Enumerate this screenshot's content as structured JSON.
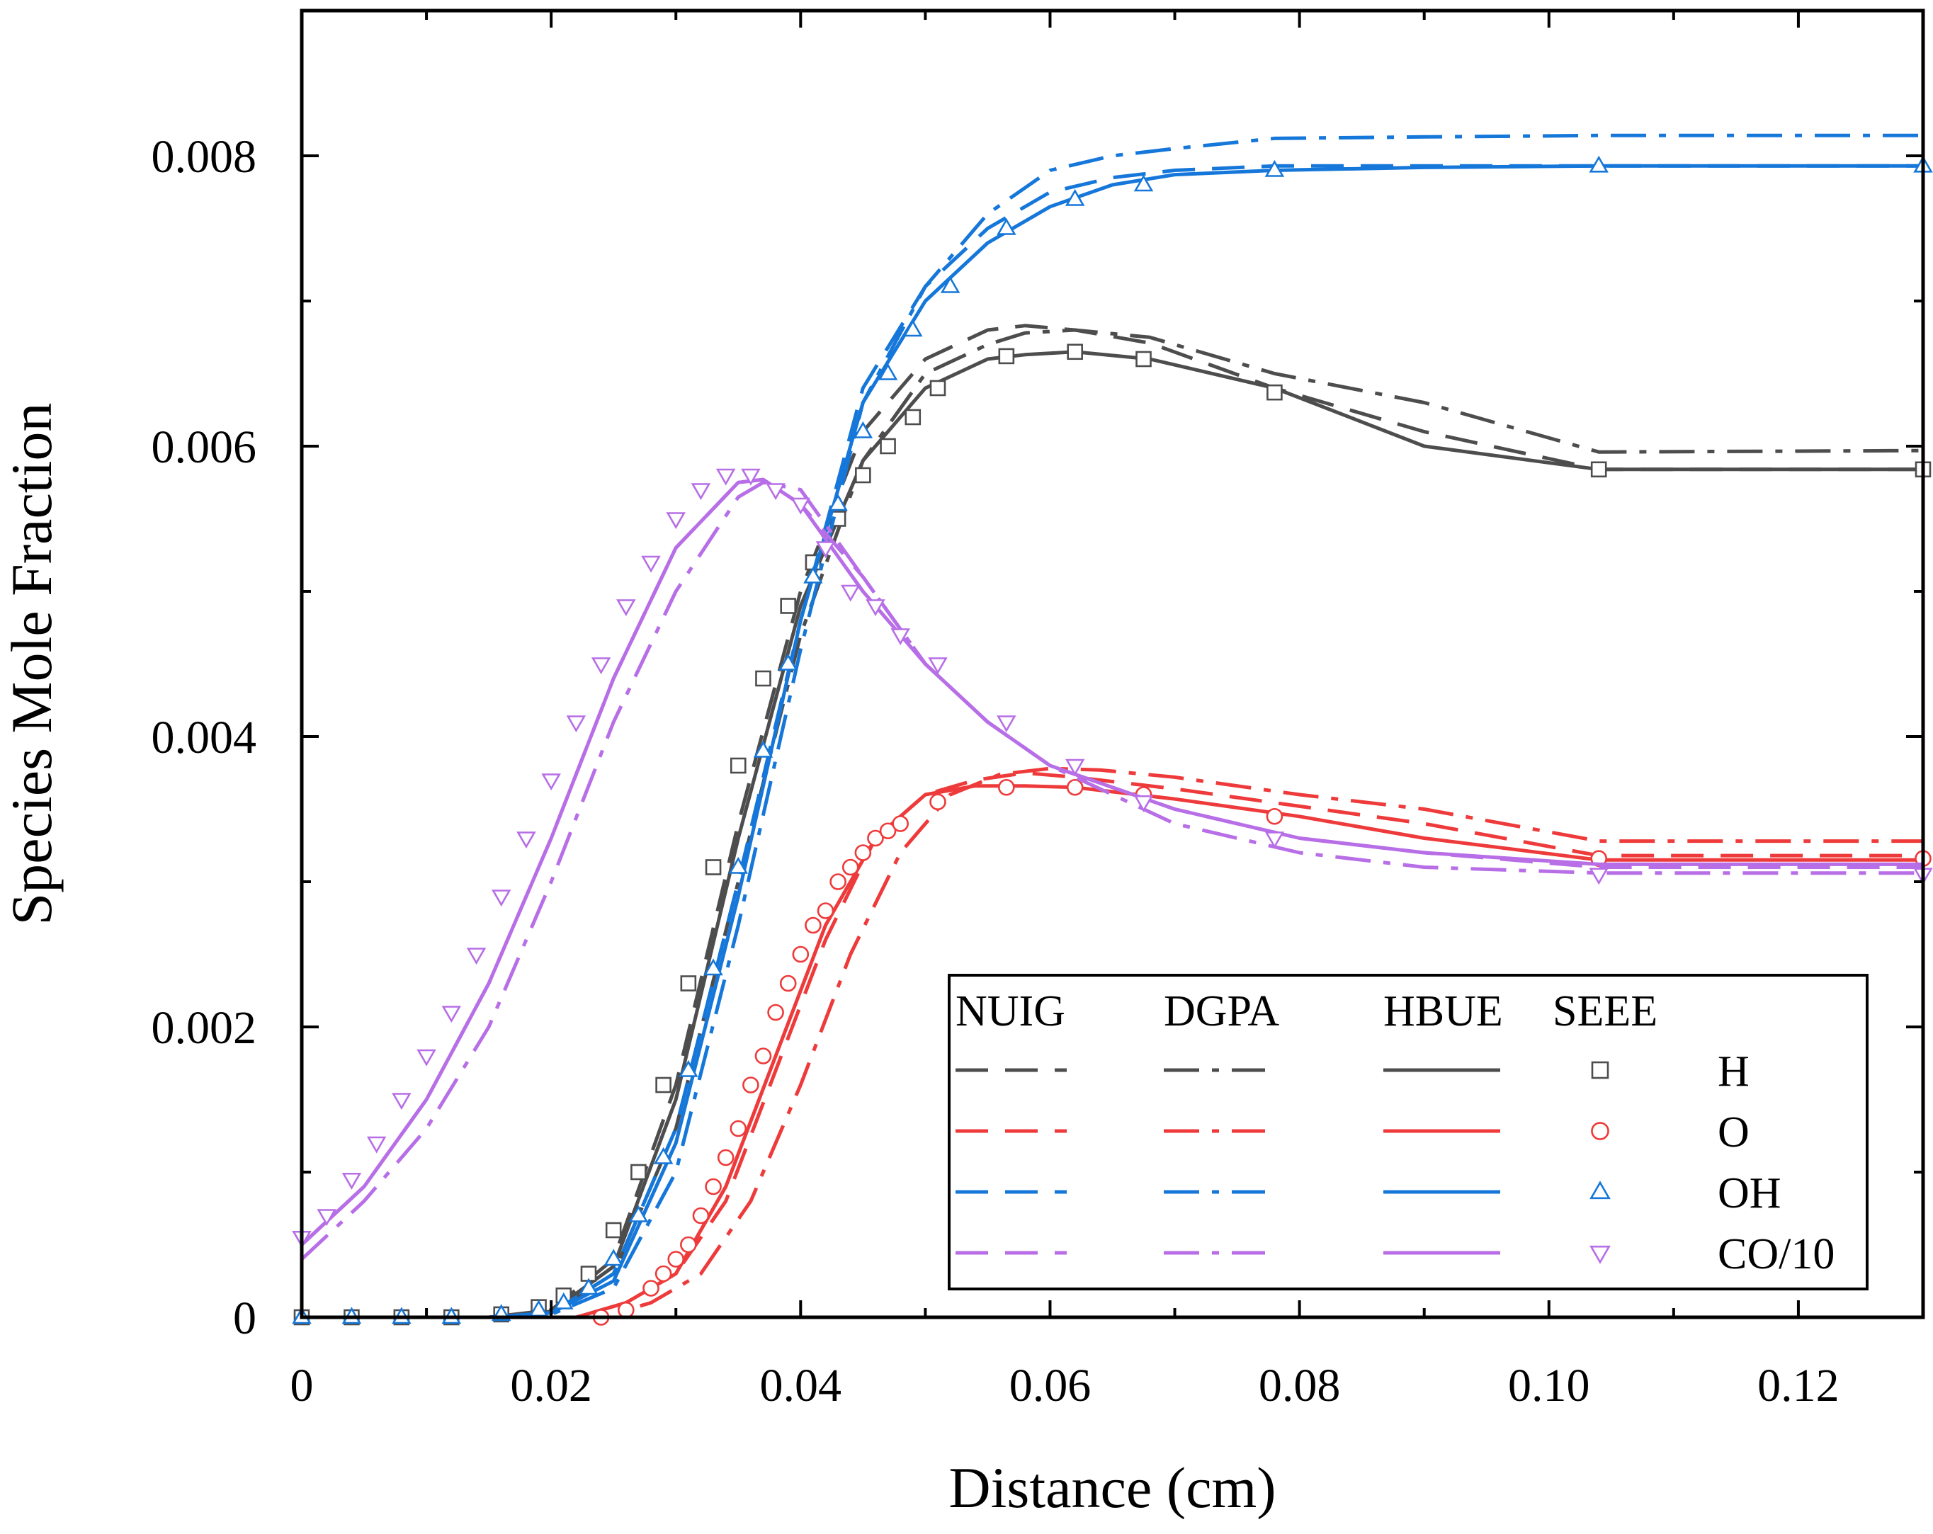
{
  "chart_data": {
    "type": "line",
    "xlabel": "Distance (cm)",
    "ylabel": "Species Mole Fraction",
    "xlim": [
      0,
      0.13
    ],
    "ylim": [
      0,
      0.009
    ],
    "xticks": [
      {
        "v": 0,
        "label": "0"
      },
      {
        "v": 0.02,
        "label": "0.02"
      },
      {
        "v": 0.04,
        "label": "0.04"
      },
      {
        "v": 0.06,
        "label": "0.06"
      },
      {
        "v": 0.08,
        "label": "0.08"
      },
      {
        "v": 0.1,
        "label": "0.10"
      },
      {
        "v": 0.12,
        "label": "0.12"
      }
    ],
    "yticks": [
      {
        "v": 0,
        "label": "0"
      },
      {
        "v": 0.002,
        "label": "0.002"
      },
      {
        "v": 0.004,
        "label": "0.004"
      },
      {
        "v": 0.006,
        "label": "0.006"
      },
      {
        "v": 0.008,
        "label": "0.008"
      }
    ],
    "legend": {
      "placement": "bottom-right",
      "models": [
        {
          "name": "NUIG",
          "style": "dash"
        },
        {
          "name": "DGPA",
          "style": "dashdot"
        },
        {
          "name": "HBUE",
          "style": "solid"
        },
        {
          "name": "SEEE",
          "style": "marker"
        }
      ]
    },
    "species": [
      {
        "name": "H",
        "color": "#4d4d4d",
        "marker": "square",
        "series": {
          "NUIG": {
            "x": [
              0,
              0.015,
              0.02,
              0.025,
              0.03,
              0.035,
              0.04,
              0.045,
              0.05,
              0.055,
              0.058,
              0.062,
              0.068,
              0.078,
              0.09,
              0.104,
              0.13
            ],
            "y": [
              0,
              0,
              5e-05,
              0.0004,
              0.0016,
              0.0034,
              0.005,
              0.0061,
              0.0066,
              0.0068,
              0.00683,
              0.0068,
              0.00671,
              0.0064,
              0.0061,
              0.00584,
              0.00584
            ]
          },
          "DGPA": {
            "x": [
              0,
              0.015,
              0.02,
              0.025,
              0.03,
              0.035,
              0.04,
              0.045,
              0.05,
              0.055,
              0.058,
              0.062,
              0.068,
              0.078,
              0.09,
              0.104,
              0.13
            ],
            "y": [
              0,
              0,
              3e-05,
              0.0003,
              0.0013,
              0.003,
              0.0047,
              0.0059,
              0.0065,
              0.0067,
              0.00678,
              0.0068,
              0.00675,
              0.0065,
              0.0063,
              0.00596,
              0.00597
            ]
          },
          "HBUE": {
            "x": [
              0,
              0.015,
              0.02,
              0.025,
              0.03,
              0.035,
              0.04,
              0.045,
              0.05,
              0.055,
              0.058,
              0.062,
              0.068,
              0.078,
              0.09,
              0.104,
              0.13
            ],
            "y": [
              0,
              0,
              4e-05,
              0.00035,
              0.0015,
              0.0033,
              0.0049,
              0.0059,
              0.0064,
              0.0066,
              0.00663,
              0.00665,
              0.0066,
              0.0064,
              0.006,
              0.00584,
              0.00584
            ]
          },
          "SEEE": {
            "x": [
              0,
              0.004,
              0.008,
              0.012,
              0.016,
              0.019,
              0.021,
              0.023,
              0.025,
              0.027,
              0.029,
              0.031,
              0.033,
              0.035,
              0.037,
              0.039,
              0.041,
              0.043,
              0.045,
              0.047,
              0.049,
              0.051,
              0.0565,
              0.062,
              0.0675,
              0.078,
              0.104,
              0.13
            ],
            "y": [
              0,
              0,
              0,
              0,
              2e-05,
              7e-05,
              0.00015,
              0.0003,
              0.0006,
              0.001,
              0.0016,
              0.0023,
              0.0031,
              0.0038,
              0.0044,
              0.0049,
              0.0052,
              0.0055,
              0.0058,
              0.006,
              0.0062,
              0.0064,
              0.00662,
              0.00665,
              0.0066,
              0.00637,
              0.00584,
              0.00584
            ]
          }
        }
      },
      {
        "name": "O",
        "color": "#ee3a3a",
        "marker": "circle",
        "series": {
          "NUIG": {
            "x": [
              0,
              0.022,
              0.026,
              0.03,
              0.034,
              0.038,
              0.042,
              0.046,
              0.05,
              0.054,
              0.058,
              0.062,
              0.07,
              0.08,
              0.09,
              0.104,
              0.13
            ],
            "y": [
              0,
              0,
              0.0001,
              0.0003,
              0.0008,
              0.0017,
              0.0026,
              0.0033,
              0.0036,
              0.0037,
              0.00375,
              0.00372,
              0.00364,
              0.00352,
              0.0034,
              0.00318,
              0.00318
            ]
          },
          "DGPA": {
            "x": [
              0,
              0.024,
              0.028,
              0.032,
              0.036,
              0.04,
              0.044,
              0.048,
              0.052,
              0.056,
              0.06,
              0.064,
              0.07,
              0.08,
              0.09,
              0.104,
              0.13
            ],
            "y": [
              0,
              0,
              0.0001,
              0.0003,
              0.0008,
              0.0016,
              0.0025,
              0.0032,
              0.0036,
              0.00374,
              0.00378,
              0.00377,
              0.00372,
              0.0036,
              0.0035,
              0.00328,
              0.00328
            ]
          },
          "HBUE": {
            "x": [
              0,
              0.022,
              0.026,
              0.03,
              0.034,
              0.038,
              0.042,
              0.046,
              0.05,
              0.054,
              0.058,
              0.062,
              0.07,
              0.08,
              0.09,
              0.104,
              0.13
            ],
            "y": [
              0,
              0,
              0.0001,
              0.0003,
              0.0009,
              0.0018,
              0.0027,
              0.0033,
              0.0036,
              0.00366,
              0.00366,
              0.00365,
              0.00357,
              0.00345,
              0.0033,
              0.00315,
              0.00315
            ]
          },
          "SEEE": {
            "x": [
              0.024,
              0.026,
              0.028,
              0.029,
              0.03,
              0.031,
              0.032,
              0.033,
              0.034,
              0.035,
              0.036,
              0.037,
              0.038,
              0.039,
              0.04,
              0.041,
              0.042,
              0.043,
              0.044,
              0.045,
              0.046,
              0.047,
              0.048,
              0.051,
              0.0565,
              0.062,
              0.0675,
              0.078,
              0.104,
              0.13
            ],
            "y": [
              0,
              5e-05,
              0.0002,
              0.0003,
              0.0004,
              0.0005,
              0.0007,
              0.0009,
              0.0011,
              0.0013,
              0.0016,
              0.0018,
              0.0021,
              0.0023,
              0.0025,
              0.0027,
              0.0028,
              0.003,
              0.0031,
              0.0032,
              0.0033,
              0.00335,
              0.0034,
              0.00355,
              0.00365,
              0.00365,
              0.0036,
              0.00345,
              0.00316,
              0.00316
            ]
          }
        }
      },
      {
        "name": "OH",
        "color": "#1577d9",
        "marker": "triangle-up",
        "series": {
          "NUIG": {
            "x": [
              0,
              0.015,
              0.02,
              0.025,
              0.03,
              0.035,
              0.04,
              0.045,
              0.05,
              0.055,
              0.06,
              0.065,
              0.07,
              0.078,
              0.09,
              0.104,
              0.13
            ],
            "y": [
              0,
              0,
              3e-05,
              0.0003,
              0.0013,
              0.003,
              0.0048,
              0.0064,
              0.0071,
              0.0075,
              0.00775,
              0.00785,
              0.0079,
              0.00793,
              0.00793,
              0.00793,
              0.00793
            ]
          },
          "DGPA": {
            "x": [
              0,
              0.015,
              0.02,
              0.025,
              0.03,
              0.035,
              0.04,
              0.045,
              0.05,
              0.055,
              0.06,
              0.065,
              0.07,
              0.078,
              0.09,
              0.104,
              0.13
            ],
            "y": [
              0,
              0,
              2e-05,
              0.0002,
              0.001,
              0.0027,
              0.0046,
              0.0063,
              0.0071,
              0.0076,
              0.0079,
              0.008,
              0.00805,
              0.00812,
              0.00813,
              0.00814,
              0.00814
            ]
          },
          "HBUE": {
            "x": [
              0,
              0.015,
              0.02,
              0.025,
              0.03,
              0.035,
              0.04,
              0.045,
              0.05,
              0.055,
              0.06,
              0.065,
              0.07,
              0.078,
              0.09,
              0.104,
              0.13
            ],
            "y": [
              0,
              0,
              3e-05,
              0.00025,
              0.0012,
              0.0029,
              0.0048,
              0.0063,
              0.007,
              0.0074,
              0.00765,
              0.0078,
              0.00787,
              0.0079,
              0.00792,
              0.00793,
              0.00793
            ]
          },
          "SEEE": {
            "x": [
              0,
              0.004,
              0.008,
              0.012,
              0.016,
              0.019,
              0.021,
              0.023,
              0.025,
              0.027,
              0.029,
              0.031,
              0.033,
              0.035,
              0.037,
              0.039,
              0.041,
              0.043,
              0.045,
              0.047,
              0.049,
              0.052,
              0.0565,
              0.062,
              0.0675,
              0.078,
              0.104,
              0.13
            ],
            "y": [
              0,
              0,
              0,
              0,
              2e-05,
              5e-05,
              0.0001,
              0.0002,
              0.0004,
              0.0007,
              0.0011,
              0.0017,
              0.0024,
              0.0031,
              0.0039,
              0.0045,
              0.0051,
              0.0056,
              0.0061,
              0.0065,
              0.0068,
              0.0071,
              0.0075,
              0.0077,
              0.0078,
              0.0079,
              0.00793,
              0.00793
            ]
          }
        }
      },
      {
        "name": "CO/10",
        "color": "#b76ee6",
        "marker": "triangle-down",
        "series": {
          "NUIG": {
            "x": [
              0,
              0.005,
              0.01,
              0.015,
              0.02,
              0.025,
              0.03,
              0.035,
              0.037,
              0.04,
              0.045,
              0.05,
              0.055,
              0.06,
              0.07,
              0.08,
              0.09,
              0.104,
              0.13
            ],
            "y": [
              0.0005,
              0.0009,
              0.0015,
              0.0023,
              0.0033,
              0.0044,
              0.0053,
              0.00575,
              0.00577,
              0.0056,
              0.0051,
              0.0045,
              0.0041,
              0.0038,
              0.0035,
              0.0033,
              0.0032,
              0.0031,
              0.0031
            ]
          },
          "DGPA": {
            "x": [
              0,
              0.005,
              0.01,
              0.015,
              0.02,
              0.025,
              0.03,
              0.035,
              0.037,
              0.04,
              0.045,
              0.05,
              0.055,
              0.06,
              0.07,
              0.08,
              0.09,
              0.104,
              0.13
            ],
            "y": [
              0.0004,
              0.0008,
              0.0013,
              0.002,
              0.003,
              0.0041,
              0.005,
              0.00565,
              0.00575,
              0.0057,
              0.0051,
              0.0045,
              0.0041,
              0.0038,
              0.0034,
              0.0032,
              0.0031,
              0.00306,
              0.00306
            ]
          },
          "HBUE": {
            "x": [
              0,
              0.005,
              0.01,
              0.015,
              0.02,
              0.025,
              0.03,
              0.035,
              0.037,
              0.04,
              0.045,
              0.05,
              0.055,
              0.06,
              0.07,
              0.08,
              0.09,
              0.104,
              0.13
            ],
            "y": [
              0.0005,
              0.0009,
              0.0015,
              0.0023,
              0.0033,
              0.0044,
              0.0053,
              0.00575,
              0.00577,
              0.0056,
              0.005,
              0.0045,
              0.0041,
              0.0038,
              0.0035,
              0.0033,
              0.0032,
              0.00312,
              0.00312
            ]
          },
          "SEEE": {
            "x": [
              0,
              0.002,
              0.004,
              0.006,
              0.008,
              0.01,
              0.012,
              0.014,
              0.016,
              0.018,
              0.02,
              0.022,
              0.024,
              0.026,
              0.028,
              0.03,
              0.032,
              0.034,
              0.036,
              0.038,
              0.04,
              0.042,
              0.044,
              0.046,
              0.048,
              0.051,
              0.0565,
              0.062,
              0.0675,
              0.078,
              0.104,
              0.13
            ],
            "y": [
              0.00055,
              0.0007,
              0.00095,
              0.0012,
              0.0015,
              0.0018,
              0.0021,
              0.0025,
              0.0029,
              0.0033,
              0.0037,
              0.0041,
              0.0045,
              0.0049,
              0.0052,
              0.0055,
              0.0057,
              0.0058,
              0.0058,
              0.0057,
              0.0056,
              0.0053,
              0.005,
              0.0049,
              0.0047,
              0.0045,
              0.0041,
              0.0038,
              0.00355,
              0.0033,
              0.00305,
              0.00305
            ]
          }
        }
      }
    ]
  }
}
